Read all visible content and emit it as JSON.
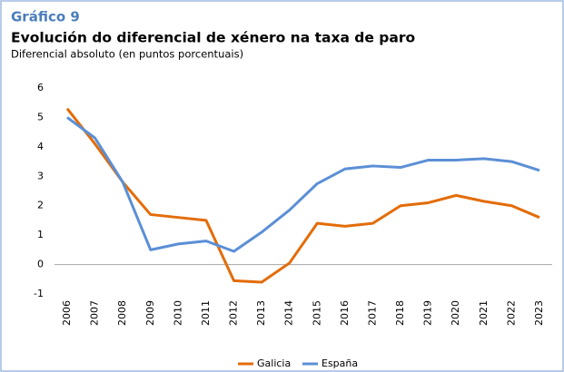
{
  "chart_data": {
    "type": "line",
    "label": "Gráfico 9",
    "title": "Evolución do diferencial de xénero na taxa de paro",
    "subtitle": "Diferencial absoluto (en puntos porcentuais)",
    "categories": [
      "2006",
      "2007",
      "2008",
      "2009",
      "2010",
      "2011",
      "2012",
      "2013",
      "2014",
      "2015",
      "2016",
      "2017",
      "2018",
      "2019",
      "2020",
      "2021",
      "2022",
      "2023"
    ],
    "series": [
      {
        "name": "Galicia",
        "color": "#e36c09",
        "values": [
          5.3,
          4.1,
          2.8,
          1.7,
          1.6,
          1.5,
          -0.55,
          -0.6,
          0.05,
          1.4,
          1.3,
          1.4,
          2.0,
          2.1,
          2.35,
          2.15,
          2.0,
          1.6
        ]
      },
      {
        "name": "España",
        "color": "#5b8fd6",
        "values": [
          5.0,
          4.3,
          2.8,
          0.5,
          0.7,
          0.8,
          0.45,
          1.1,
          1.85,
          2.75,
          3.25,
          3.35,
          3.3,
          3.55,
          3.55,
          3.6,
          3.5,
          3.2
        ]
      }
    ],
    "ylim": [
      -1,
      6
    ],
    "yticks": [
      -1,
      0,
      1,
      2,
      3,
      4,
      5,
      6
    ],
    "grid": false,
    "legend": "bottom"
  }
}
